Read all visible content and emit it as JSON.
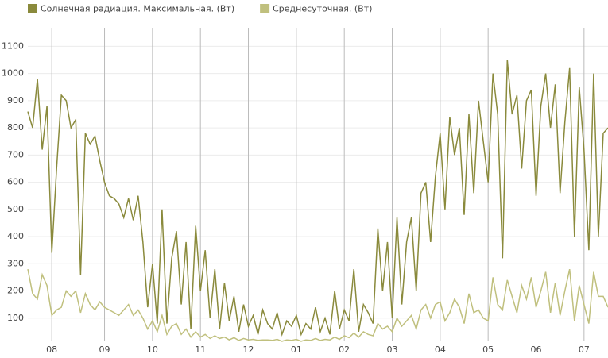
{
  "chart_data": {
    "type": "line",
    "categories": [
      null,
      null,
      null,
      null,
      null,
      "08",
      null,
      null,
      null,
      null,
      null,
      null,
      null,
      null,
      null,
      null,
      "09",
      null,
      null,
      null,
      null,
      null,
      null,
      null,
      null,
      null,
      "10",
      null,
      null,
      null,
      null,
      null,
      null,
      null,
      null,
      null,
      "11",
      null,
      null,
      null,
      null,
      null,
      null,
      null,
      null,
      null,
      "12",
      null,
      null,
      null,
      null,
      null,
      null,
      null,
      null,
      null,
      "01",
      null,
      null,
      null,
      null,
      null,
      null,
      null,
      null,
      null,
      "02",
      null,
      null,
      null,
      null,
      null,
      null,
      null,
      null,
      null,
      "03",
      null,
      null,
      null,
      null,
      null,
      null,
      null,
      null,
      null,
      "04",
      null,
      null,
      null,
      null,
      null,
      null,
      null,
      null,
      null,
      "05",
      null,
      null,
      null,
      null,
      null,
      null,
      null,
      null,
      null,
      "06",
      null,
      null,
      null,
      null,
      null,
      null,
      null,
      null,
      null,
      "07",
      null,
      null,
      null,
      null,
      null
    ],
    "series": [
      {
        "name": "Солнечная радиация. Максимальная. (Вт)",
        "color": "#8a8a3c",
        "values": [
          860,
          800,
          980,
          720,
          880,
          340,
          650,
          920,
          900,
          800,
          830,
          260,
          780,
          740,
          770,
          680,
          600,
          550,
          540,
          520,
          470,
          540,
          460,
          550,
          380,
          140,
          300,
          80,
          500,
          80,
          320,
          420,
          150,
          380,
          60,
          440,
          200,
          350,
          100,
          280,
          60,
          230,
          90,
          180,
          50,
          150,
          70,
          110,
          40,
          130,
          80,
          60,
          120,
          40,
          90,
          70,
          110,
          40,
          80,
          60,
          140,
          50,
          100,
          40,
          200,
          60,
          130,
          90,
          280,
          50,
          150,
          120,
          80,
          430,
          200,
          380,
          100,
          470,
          150,
          380,
          470,
          200,
          560,
          600,
          380,
          620,
          780,
          500,
          840,
          700,
          800,
          480,
          850,
          560,
          900,
          750,
          600,
          1000,
          850,
          320,
          1050,
          850,
          920,
          650,
          900,
          940,
          550,
          880,
          1000,
          800,
          960,
          560,
          820,
          1020,
          400,
          950,
          720,
          350,
          1000,
          400,
          780,
          800
        ]
      },
      {
        "name": "Среднесуточная. (Вт)",
        "color": "#c0c07e",
        "values": [
          280,
          190,
          170,
          260,
          220,
          110,
          130,
          140,
          200,
          180,
          200,
          120,
          190,
          150,
          130,
          160,
          140,
          130,
          120,
          110,
          130,
          150,
          110,
          130,
          100,
          60,
          90,
          50,
          110,
          40,
          70,
          80,
          40,
          60,
          30,
          50,
          30,
          40,
          25,
          35,
          25,
          30,
          20,
          28,
          18,
          25,
          20,
          22,
          18,
          20,
          20,
          18,
          22,
          15,
          20,
          18,
          22,
          15,
          20,
          18,
          25,
          18,
          22,
          20,
          30,
          22,
          35,
          28,
          45,
          30,
          50,
          40,
          35,
          80,
          60,
          70,
          50,
          100,
          70,
          90,
          110,
          60,
          130,
          150,
          100,
          150,
          160,
          90,
          120,
          170,
          140,
          80,
          190,
          120,
          130,
          100,
          90,
          250,
          150,
          130,
          240,
          180,
          120,
          220,
          170,
          250,
          140,
          200,
          270,
          120,
          230,
          110,
          200,
          280,
          90,
          220,
          150,
          80,
          270,
          180,
          180,
          140
        ]
      }
    ],
    "ylim": [
      0,
      1180
    ],
    "yticks": [
      100,
      200,
      300,
      400,
      500,
      600,
      700,
      800,
      900,
      1000,
      1100
    ],
    "grid": true,
    "legend": "top-left"
  }
}
